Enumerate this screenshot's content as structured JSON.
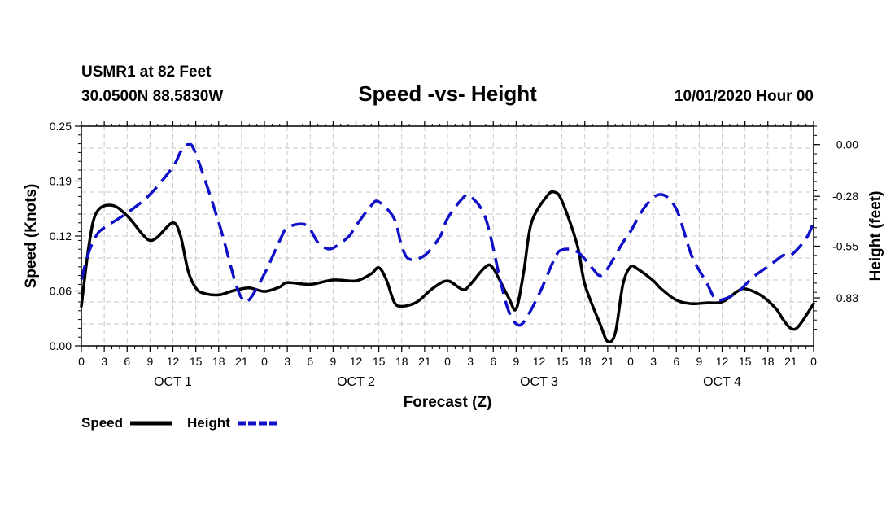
{
  "header": {
    "station": "USMR1 at 82 Feet",
    "coords": "30.0500N 88.5830W",
    "title": "Speed -vs- Height",
    "datetime": "10/01/2020 Hour 00"
  },
  "chart_data": {
    "type": "line",
    "title": "Speed -vs- Height",
    "xlabel": "Forecast (Z)",
    "ylabel_left": "Speed (Knots)",
    "ylabel_right": "Height (feet)",
    "x_unit": "hours from 10/01/2020 00Z",
    "xlim": [
      0,
      96
    ],
    "ylim_left": [
      0,
      0.25
    ],
    "ylim_right": [
      -1.09,
      0.1
    ],
    "y_ticks_left": [
      {
        "value": 0.0,
        "label": "0.00"
      },
      {
        "value": 0.0625,
        "label": "0.06"
      },
      {
        "value": 0.125,
        "label": "0.12"
      },
      {
        "value": 0.1875,
        "label": "0.19"
      },
      {
        "value": 0.25,
        "label": "0.25"
      }
    ],
    "y_ticks_right": [
      {
        "value": 0.0,
        "label": "0.00"
      },
      {
        "value": -0.28,
        "label": "-0.28"
      },
      {
        "value": -0.55,
        "label": "-0.55"
      },
      {
        "value": -0.83,
        "label": "-0.83"
      }
    ],
    "x_ticks": [
      {
        "value": 0,
        "label": "0"
      },
      {
        "value": 3,
        "label": "3"
      },
      {
        "value": 6,
        "label": "6"
      },
      {
        "value": 9,
        "label": "9"
      },
      {
        "value": 12,
        "label": "12"
      },
      {
        "value": 15,
        "label": "15"
      },
      {
        "value": 18,
        "label": "18"
      },
      {
        "value": 21,
        "label": "21"
      },
      {
        "value": 24,
        "label": "0"
      },
      {
        "value": 27,
        "label": "3"
      },
      {
        "value": 30,
        "label": "6"
      },
      {
        "value": 33,
        "label": "9"
      },
      {
        "value": 36,
        "label": "12"
      },
      {
        "value": 39,
        "label": "15"
      },
      {
        "value": 42,
        "label": "18"
      },
      {
        "value": 45,
        "label": "21"
      },
      {
        "value": 48,
        "label": "0"
      },
      {
        "value": 51,
        "label": "3"
      },
      {
        "value": 54,
        "label": "6"
      },
      {
        "value": 57,
        "label": "9"
      },
      {
        "value": 60,
        "label": "12"
      },
      {
        "value": 63,
        "label": "15"
      },
      {
        "value": 66,
        "label": "18"
      },
      {
        "value": 69,
        "label": "21"
      },
      {
        "value": 72,
        "label": "0"
      },
      {
        "value": 75,
        "label": "3"
      },
      {
        "value": 78,
        "label": "6"
      },
      {
        "value": 81,
        "label": "9"
      },
      {
        "value": 84,
        "label": "12"
      },
      {
        "value": 87,
        "label": "15"
      },
      {
        "value": 90,
        "label": "18"
      },
      {
        "value": 93,
        "label": "21"
      },
      {
        "value": 96,
        "label": "0"
      }
    ],
    "day_labels": [
      {
        "value": 12,
        "label": "OCT 1"
      },
      {
        "value": 36,
        "label": "OCT 2"
      },
      {
        "value": 60,
        "label": "OCT 3"
      },
      {
        "value": 84,
        "label": "OCT 4"
      }
    ],
    "series": [
      {
        "name": "Speed",
        "axis": "left",
        "color": "#000000",
        "dash": "solid",
        "points": [
          [
            0,
            0.045
          ],
          [
            1,
            0.115
          ],
          [
            2,
            0.152
          ],
          [
            4,
            0.16
          ],
          [
            6,
            0.148
          ],
          [
            8,
            0.127
          ],
          [
            9,
            0.12
          ],
          [
            10,
            0.124
          ],
          [
            12,
            0.14
          ],
          [
            13,
            0.125
          ],
          [
            14,
            0.085
          ],
          [
            15,
            0.066
          ],
          [
            16,
            0.06
          ],
          [
            18,
            0.058
          ],
          [
            20,
            0.063
          ],
          [
            22,
            0.066
          ],
          [
            24,
            0.062
          ],
          [
            26,
            0.067
          ],
          [
            27,
            0.072
          ],
          [
            30,
            0.07
          ],
          [
            33,
            0.075
          ],
          [
            36,
            0.074
          ],
          [
            38,
            0.082
          ],
          [
            39,
            0.089
          ],
          [
            40,
            0.075
          ],
          [
            41,
            0.05
          ],
          [
            42,
            0.045
          ],
          [
            44,
            0.05
          ],
          [
            46,
            0.065
          ],
          [
            48,
            0.074
          ],
          [
            50,
            0.064
          ],
          [
            51,
            0.07
          ],
          [
            53,
            0.09
          ],
          [
            54,
            0.088
          ],
          [
            56,
            0.055
          ],
          [
            57,
            0.042
          ],
          [
            58,
            0.085
          ],
          [
            59,
            0.14
          ],
          [
            61,
            0.17
          ],
          [
            62,
            0.175
          ],
          [
            63,
            0.165
          ],
          [
            65,
            0.115
          ],
          [
            66,
            0.07
          ],
          [
            68,
            0.025
          ],
          [
            69,
            0.005
          ],
          [
            70,
            0.015
          ],
          [
            71,
            0.07
          ],
          [
            72,
            0.09
          ],
          [
            73,
            0.087
          ],
          [
            75,
            0.074
          ],
          [
            76,
            0.065
          ],
          [
            78,
            0.052
          ],
          [
            80,
            0.048
          ],
          [
            82,
            0.049
          ],
          [
            84,
            0.05
          ],
          [
            86,
            0.062
          ],
          [
            87,
            0.065
          ],
          [
            89,
            0.058
          ],
          [
            91,
            0.043
          ],
          [
            92,
            0.03
          ],
          [
            93,
            0.02
          ],
          [
            94,
            0.022
          ],
          [
            96,
            0.048
          ]
        ]
      },
      {
        "name": "Height",
        "axis": "right",
        "color": "#1010c8",
        "dash": "dashed",
        "points": [
          [
            0,
            -0.73
          ],
          [
            1,
            -0.58
          ],
          [
            2,
            -0.49
          ],
          [
            3,
            -0.45
          ],
          [
            6,
            -0.37
          ],
          [
            9,
            -0.27
          ],
          [
            12,
            -0.12
          ],
          [
            13,
            -0.04
          ],
          [
            14,
            0.0
          ],
          [
            15,
            -0.05
          ],
          [
            18,
            -0.42
          ],
          [
            20,
            -0.72
          ],
          [
            21,
            -0.83
          ],
          [
            22,
            -0.84
          ],
          [
            24,
            -0.7
          ],
          [
            26,
            -0.52
          ],
          [
            27,
            -0.45
          ],
          [
            29,
            -0.43
          ],
          [
            30,
            -0.46
          ],
          [
            31,
            -0.53
          ],
          [
            32,
            -0.56
          ],
          [
            33,
            -0.56
          ],
          [
            35,
            -0.5
          ],
          [
            36,
            -0.44
          ],
          [
            38,
            -0.33
          ],
          [
            39,
            -0.31
          ],
          [
            41,
            -0.4
          ],
          [
            42,
            -0.55
          ],
          [
            43,
            -0.62
          ],
          [
            45,
            -0.6
          ],
          [
            47,
            -0.5
          ],
          [
            48,
            -0.4
          ],
          [
            50,
            -0.29
          ],
          [
            51,
            -0.28
          ],
          [
            53,
            -0.4
          ],
          [
            55,
            -0.75
          ],
          [
            56,
            -0.9
          ],
          [
            57,
            -0.97
          ],
          [
            58,
            -0.96
          ],
          [
            60,
            -0.81
          ],
          [
            62,
            -0.62
          ],
          [
            63,
            -0.57
          ],
          [
            65,
            -0.58
          ],
          [
            67,
            -0.67
          ],
          [
            68,
            -0.71
          ],
          [
            69,
            -0.67
          ],
          [
            71,
            -0.53
          ],
          [
            72,
            -0.47
          ],
          [
            74,
            -0.33
          ],
          [
            76,
            -0.27
          ],
          [
            78,
            -0.35
          ],
          [
            80,
            -0.6
          ],
          [
            82,
            -0.75
          ],
          [
            83,
            -0.83
          ],
          [
            84,
            -0.84
          ],
          [
            86,
            -0.8
          ],
          [
            88,
            -0.72
          ],
          [
            90,
            -0.66
          ],
          [
            91,
            -0.63
          ],
          [
            92,
            -0.6
          ],
          [
            93,
            -0.6
          ],
          [
            95,
            -0.51
          ],
          [
            96,
            -0.42
          ]
        ]
      }
    ],
    "legend": [
      {
        "label": "Speed",
        "color": "#000000",
        "dash": "solid"
      },
      {
        "label": "Height",
        "color": "#1010c8",
        "dash": "dashed"
      }
    ],
    "legend_position": "bottom-left",
    "grid": true
  }
}
